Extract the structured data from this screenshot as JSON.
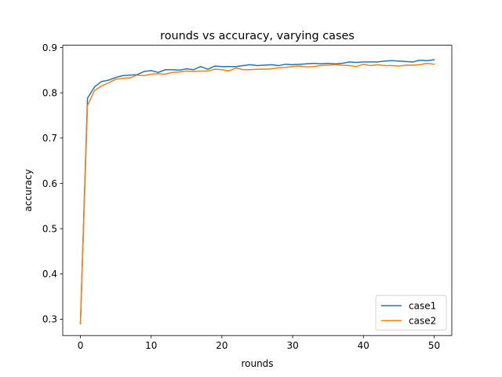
{
  "chart_data": {
    "type": "line",
    "title": "rounds vs accuracy, varying cases",
    "xlabel": "rounds",
    "ylabel": "accuracy",
    "xlim": [
      -2.5,
      52.5
    ],
    "ylim": [
      0.264,
      0.905
    ],
    "xticks": [
      0,
      10,
      20,
      30,
      40,
      50
    ],
    "yticks": [
      0.3,
      0.4,
      0.5,
      0.6,
      0.7,
      0.8,
      0.9
    ],
    "grid": false,
    "legend_position": "lower-right",
    "series": [
      {
        "name": "case1",
        "color": "#1f77b4",
        "x": [
          0,
          1,
          2,
          3,
          4,
          5,
          6,
          7,
          8,
          9,
          10,
          11,
          12,
          13,
          14,
          15,
          16,
          17,
          18,
          19,
          20,
          21,
          22,
          23,
          24,
          25,
          26,
          27,
          28,
          29,
          30,
          31,
          32,
          33,
          34,
          35,
          36,
          37,
          38,
          39,
          40,
          41,
          42,
          43,
          44,
          45,
          46,
          47,
          48,
          49,
          50
        ],
        "values": [
          0.29,
          0.788,
          0.813,
          0.825,
          0.828,
          0.834,
          0.838,
          0.839,
          0.84,
          0.847,
          0.849,
          0.845,
          0.851,
          0.851,
          0.85,
          0.853,
          0.851,
          0.858,
          0.852,
          0.859,
          0.858,
          0.858,
          0.858,
          0.86,
          0.862,
          0.86,
          0.861,
          0.862,
          0.86,
          0.863,
          0.862,
          0.863,
          0.864,
          0.865,
          0.864,
          0.865,
          0.864,
          0.865,
          0.868,
          0.867,
          0.868,
          0.868,
          0.868,
          0.87,
          0.871,
          0.87,
          0.869,
          0.868,
          0.872,
          0.871,
          0.873
        ]
      },
      {
        "name": "case2",
        "color": "#ff7f0e",
        "x": [
          0,
          1,
          2,
          3,
          4,
          5,
          6,
          7,
          8,
          9,
          10,
          11,
          12,
          13,
          14,
          15,
          16,
          17,
          18,
          19,
          20,
          21,
          22,
          23,
          24,
          25,
          26,
          27,
          28,
          29,
          30,
          31,
          32,
          33,
          34,
          35,
          36,
          37,
          38,
          39,
          40,
          41,
          42,
          43,
          44,
          45,
          46,
          47,
          48,
          49,
          50
        ],
        "values": [
          0.29,
          0.772,
          0.805,
          0.815,
          0.822,
          0.83,
          0.832,
          0.833,
          0.839,
          0.838,
          0.841,
          0.842,
          0.841,
          0.845,
          0.846,
          0.848,
          0.847,
          0.848,
          0.848,
          0.852,
          0.851,
          0.848,
          0.855,
          0.851,
          0.851,
          0.852,
          0.852,
          0.853,
          0.855,
          0.856,
          0.858,
          0.859,
          0.857,
          0.858,
          0.86,
          0.861,
          0.862,
          0.861,
          0.86,
          0.858,
          0.863,
          0.86,
          0.862,
          0.86,
          0.86,
          0.859,
          0.861,
          0.861,
          0.862,
          0.865,
          0.863
        ]
      }
    ]
  }
}
